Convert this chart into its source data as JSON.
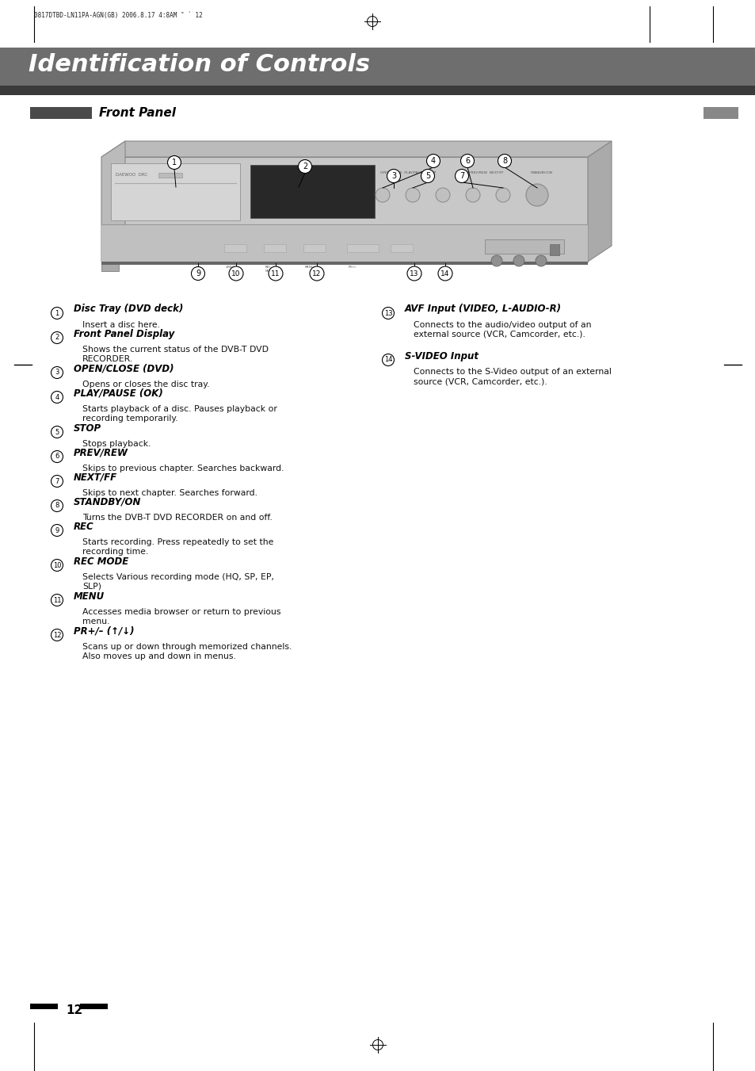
{
  "bg_color": "#ffffff",
  "header_bar_color": "#6e6e6e",
  "header_bar_dark": "#3a3a3a",
  "header_text": "Identification of Controls",
  "header_small_text": "0817DTBD-LN11PA-AGN(GB) 2006.8.17 4:8AM",
  "section_label": "Front Panel",
  "section_bar_color": "#555555",
  "right_gray_box_color": "#888888",
  "page_number": "12",
  "items_left": [
    {
      "num": "1",
      "title": "Disc Tray (DVD deck)",
      "desc": "Insert a disc here."
    },
    {
      "num": "2",
      "title": "Front Panel Display",
      "desc": "Shows the current status of the DVB-T DVD\nRECORDER."
    },
    {
      "num": "3",
      "title": "OPEN/CLOSE (DVD)",
      "desc": "Opens or closes the disc tray."
    },
    {
      "num": "4",
      "title": "PLAY/PAUSE (OK)",
      "desc": "Starts playback of a disc. Pauses playback or\nrecording temporarily."
    },
    {
      "num": "5",
      "title": "STOP",
      "desc": "Stops playback."
    },
    {
      "num": "6",
      "title": "PREV/REW",
      "desc": "Skips to previous chapter. Searches backward."
    },
    {
      "num": "7",
      "title": "NEXT/FF",
      "desc": "Skips to next chapter. Searches forward."
    },
    {
      "num": "8",
      "title": "STANDBY/ON",
      "desc": "Turns the DVB-T DVD RECORDER on and off."
    },
    {
      "num": "9",
      "title": "REC",
      "desc": "Starts recording. Press repeatedly to set the\nrecording time."
    },
    {
      "num": "10",
      "title": "REC MODE",
      "desc": "Selects Various recording mode (HQ, SP, EP,\nSLP)"
    },
    {
      "num": "11",
      "title": "MENU",
      "desc": "Accesses media browser or return to previous\nmenu."
    },
    {
      "num": "12",
      "title": "PR+/– (↑/↓)",
      "desc": "Scans up or down through memorized channels.\nAlso moves up and down in menus."
    }
  ],
  "items_right": [
    {
      "num": "13",
      "title": "AVF Input (VIDEO, L-AUDIO-R)",
      "desc": "Connects to the audio/video output of an\nexternal source (VCR, Camcorder, etc.)."
    },
    {
      "num": "14",
      "title": "S-VIDEO Input",
      "desc": "Connects to the S-Video output of an external\nsource (VCR, Camcorder, etc.)."
    }
  ]
}
